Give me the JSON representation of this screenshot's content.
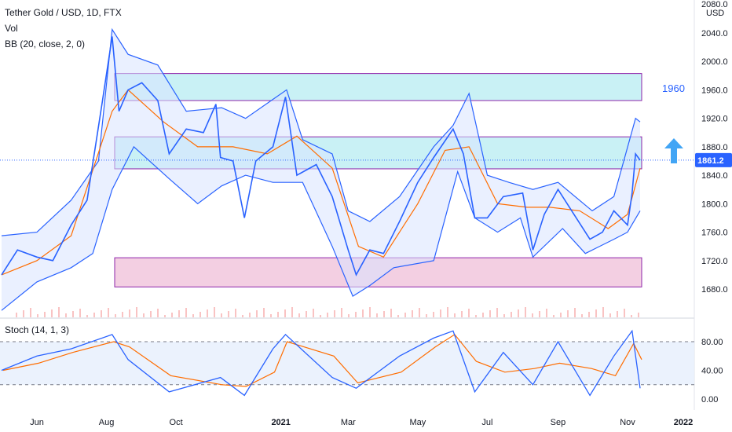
{
  "legend": {
    "title": "Tether Gold / USD, 1D, FTX",
    "vol": "Vol",
    "bb": "BB (20, close, 2, 0)",
    "stoch": "Stoch (14, 1, 3)"
  },
  "price_axis": {
    "currency": "USD",
    "top_label": "2080.0",
    "ticks": [
      "2040.0",
      "2000.0",
      "1960.0",
      "1920.0",
      "1880.0",
      "1840.0",
      "1800.0",
      "1760.0",
      "1720.0",
      "1680.0"
    ],
    "last_price": "1861.2"
  },
  "stoch_axis": {
    "ticks": [
      "80.00",
      "40.00",
      "0.00"
    ]
  },
  "time_axis": {
    "ticks": [
      {
        "label": "Jun",
        "bold": false
      },
      {
        "label": "Aug",
        "bold": false
      },
      {
        "label": "Oct",
        "bold": false
      },
      {
        "label": "2021",
        "bold": true
      },
      {
        "label": "Mar",
        "bold": false
      },
      {
        "label": "May",
        "bold": false
      },
      {
        "label": "Jul",
        "bold": false
      },
      {
        "label": "Sep",
        "bold": false
      },
      {
        "label": "Nov",
        "bold": false
      },
      {
        "label": "2022",
        "bold": true
      }
    ]
  },
  "annotation": {
    "label": "1960"
  },
  "colors": {
    "price_line": "#2962ff",
    "bb_basis": "#ff6d00",
    "bb_band": "#2962ff",
    "bb_fill": "#d8e3ff",
    "cyan_zone": "#c9f1f5",
    "pink_zone": "#f3cfe2",
    "zone_border": "#8e24aa",
    "stoch_k": "#2962ff",
    "stoch_d": "#ff6d00",
    "arrow": "#42a5f5",
    "last_price_tag": "#2962ff"
  },
  "chart_data": [
    {
      "type": "line",
      "title": "Tether Gold / USD, 1D, FTX",
      "x_range": [
        "2020-05-01",
        "2021-11-12"
      ],
      "ylim": [
        1655,
        2080
      ],
      "zones": [
        {
          "from": 1945,
          "to": 1983,
          "color": "cyan"
        },
        {
          "from": 1849,
          "to": 1894,
          "color": "cyan"
        },
        {
          "from": 1683,
          "to": 1724,
          "color": "pink"
        }
      ],
      "series": [
        {
          "name": "close",
          "x": [
            "2020-05-01",
            "2020-05-15",
            "2020-06-01",
            "2020-06-15",
            "2020-07-01",
            "2020-07-15",
            "2020-07-28",
            "2020-08-06",
            "2020-08-12",
            "2020-08-20",
            "2020-09-01",
            "2020-09-15",
            "2020-09-25",
            "2020-10-10",
            "2020-10-25",
            "2020-11-05",
            "2020-11-09",
            "2020-11-20",
            "2020-11-30",
            "2020-12-10",
            "2020-12-25",
            "2021-01-05",
            "2021-01-15",
            "2021-02-01",
            "2021-02-15",
            "2021-03-01",
            "2021-03-08",
            "2021-03-20",
            "2021-04-01",
            "2021-04-15",
            "2021-05-01",
            "2021-05-15",
            "2021-06-01",
            "2021-06-10",
            "2021-06-20",
            "2021-07-01",
            "2021-07-15",
            "2021-08-01",
            "2021-08-10",
            "2021-08-20",
            "2021-09-01",
            "2021-09-15",
            "2021-09-29",
            "2021-10-10",
            "2021-10-20",
            "2021-11-01",
            "2021-11-05",
            "2021-11-08",
            "2021-11-12"
          ],
          "values": [
            1700,
            1735,
            1725,
            1720,
            1770,
            1805,
            1940,
            2035,
            1930,
            1960,
            1970,
            1945,
            1870,
            1905,
            1900,
            1940,
            1865,
            1860,
            1780,
            1860,
            1880,
            1950,
            1840,
            1855,
            1810,
            1735,
            1700,
            1735,
            1730,
            1775,
            1830,
            1865,
            1905,
            1870,
            1780,
            1780,
            1810,
            1815,
            1735,
            1785,
            1820,
            1785,
            1750,
            1760,
            1790,
            1770,
            1815,
            1870,
            1861.2
          ]
        },
        {
          "name": "bb_upper",
          "x": [
            "2020-05-01",
            "2020-06-01",
            "2020-07-01",
            "2020-07-25",
            "2020-08-06",
            "2020-08-20",
            "2020-09-15",
            "2020-10-10",
            "2020-11-10",
            "2020-12-01",
            "2021-01-06",
            "2021-01-20",
            "2021-02-15",
            "2021-03-01",
            "2021-03-20",
            "2021-04-15",
            "2021-05-15",
            "2021-06-01",
            "2021-06-15",
            "2021-07-01",
            "2021-07-20",
            "2021-08-10",
            "2021-09-01",
            "2021-10-01",
            "2021-10-20",
            "2021-11-08",
            "2021-11-12"
          ],
          "values": [
            1755,
            1760,
            1805,
            1860,
            2045,
            2010,
            1995,
            1930,
            1935,
            1920,
            1960,
            1890,
            1870,
            1790,
            1775,
            1810,
            1880,
            1910,
            1955,
            1840,
            1830,
            1820,
            1830,
            1790,
            1810,
            1920,
            1915
          ]
        },
        {
          "name": "bb_basis",
          "x": [
            "2020-05-01",
            "2020-06-01",
            "2020-07-01",
            "2020-08-06",
            "2020-08-20",
            "2020-09-20",
            "2020-10-20",
            "2020-11-20",
            "2020-12-20",
            "2021-01-15",
            "2021-02-15",
            "2021-03-10",
            "2021-04-01",
            "2021-05-01",
            "2021-05-25",
            "2021-06-15",
            "2021-07-10",
            "2021-08-05",
            "2021-08-25",
            "2021-09-20",
            "2021-10-15",
            "2021-11-01",
            "2021-11-12"
          ],
          "values": [
            1700,
            1720,
            1755,
            1930,
            1960,
            1915,
            1880,
            1880,
            1870,
            1895,
            1850,
            1740,
            1725,
            1800,
            1875,
            1880,
            1800,
            1795,
            1795,
            1790,
            1765,
            1785,
            1850
          ]
        },
        {
          "name": "bb_lower",
          "x": [
            "2020-05-01",
            "2020-06-01",
            "2020-07-01",
            "2020-07-20",
            "2020-08-06",
            "2020-08-25",
            "2020-09-25",
            "2020-10-20",
            "2020-11-10",
            "2020-12-01",
            "2020-12-25",
            "2021-01-20",
            "2021-02-15",
            "2021-03-05",
            "2021-03-20",
            "2021-04-10",
            "2021-05-15",
            "2021-06-05",
            "2021-06-20",
            "2021-07-10",
            "2021-07-30",
            "2021-08-10",
            "2021-09-05",
            "2021-09-25",
            "2021-10-20",
            "2021-11-01",
            "2021-11-12"
          ],
          "values": [
            1650,
            1690,
            1710,
            1730,
            1820,
            1880,
            1835,
            1800,
            1825,
            1840,
            1830,
            1830,
            1740,
            1670,
            1685,
            1710,
            1720,
            1845,
            1780,
            1760,
            1780,
            1725,
            1765,
            1730,
            1750,
            1760,
            1790
          ]
        }
      ]
    },
    {
      "type": "line",
      "title": "Stoch (14, 1, 3)",
      "ylim": [
        0,
        100
      ],
      "bands": [
        80,
        20
      ],
      "series": [
        {
          "name": "%K",
          "x": [
            "2020-05-01",
            "2020-06-01",
            "2020-07-01",
            "2020-08-06",
            "2020-08-20",
            "2020-09-25",
            "2020-11-09",
            "2020-11-30",
            "2020-12-25",
            "2021-01-05",
            "2021-02-15",
            "2021-03-08",
            "2021-04-15",
            "2021-05-15",
            "2021-06-01",
            "2021-06-20",
            "2021-07-15",
            "2021-08-10",
            "2021-09-01",
            "2021-09-29",
            "2021-10-20",
            "2021-11-05",
            "2021-11-12"
          ],
          "values": [
            40,
            60,
            70,
            90,
            55,
            10,
            30,
            5,
            70,
            90,
            30,
            15,
            60,
            85,
            95,
            10,
            65,
            20,
            80,
            5,
            60,
            95,
            15
          ]
        }
      ]
    }
  ]
}
